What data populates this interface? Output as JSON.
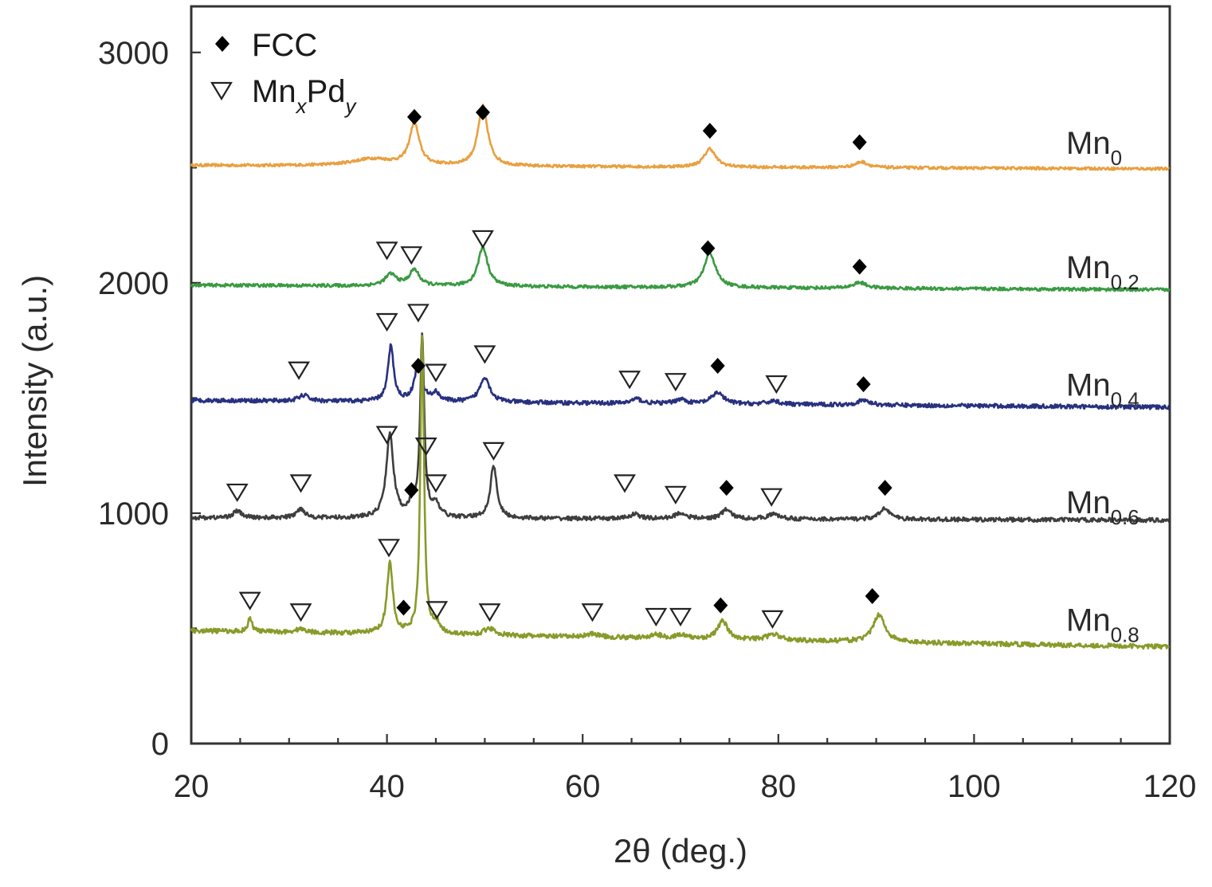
{
  "chart_data": {
    "type": "line",
    "title": "",
    "xlabel": "2θ (deg.)",
    "ylabel": "Intensity (a.u.)",
    "xlim": [
      20,
      120
    ],
    "ylim": [
      0,
      3200
    ],
    "x_ticks": [
      20,
      40,
      60,
      80,
      100,
      120
    ],
    "y_ticks": [
      0,
      1000,
      2000,
      3000
    ],
    "grid": false,
    "legend": {
      "placement": "top-left",
      "entries": [
        {
          "marker": "filled-diamond",
          "label": "FCC"
        },
        {
          "marker": "open-triangle-down",
          "label_main": "Mn",
          "sub1": "x",
          "mid": "Pd",
          "sub2": "y"
        }
      ]
    },
    "series": [
      {
        "label_main": "Mn",
        "label_sub": "0",
        "color": "#e8a040",
        "baseline": 2510,
        "baseline_end": 2495,
        "noise": 6,
        "label_y": 2560,
        "peaks": [
          [
            38.5,
            30,
            2.5
          ],
          [
            42.8,
            180,
            0.6
          ],
          [
            49.8,
            260,
            0.6
          ],
          [
            73.0,
            80,
            0.7
          ],
          [
            88.5,
            25,
            0.8
          ]
        ],
        "fcc": [
          [
            42.8,
            2720
          ],
          [
            49.8,
            2740
          ],
          [
            73.0,
            2660
          ],
          [
            88.3,
            2610
          ]
        ],
        "mnpd": []
      },
      {
        "label_main": "Mn",
        "label_sub": "0.2",
        "color": "#3a9a42",
        "baseline": 1990,
        "baseline_end": 1970,
        "noise": 7,
        "label_y": 2020,
        "peaks": [
          [
            40.4,
            50,
            0.7
          ],
          [
            42.8,
            70,
            0.6
          ],
          [
            49.8,
            170,
            0.6
          ],
          [
            73.0,
            150,
            0.7
          ],
          [
            88.3,
            25,
            0.8
          ]
        ],
        "fcc": [
          [
            72.8,
            2150
          ],
          [
            88.3,
            2070
          ]
        ],
        "mnpd": [
          [
            40.0,
            2140
          ],
          [
            42.5,
            2120
          ],
          [
            49.8,
            2190
          ]
        ]
      },
      {
        "label_main": "Mn",
        "label_sub": "0.4",
        "color": "#28317f",
        "baseline": 1490,
        "baseline_end": 1460,
        "noise": 9,
        "label_y": 1510,
        "peaks": [
          [
            31.5,
            25,
            0.6
          ],
          [
            40.4,
            240,
            0.35
          ],
          [
            43.2,
            160,
            0.45
          ],
          [
            45.0,
            35,
            0.5
          ],
          [
            50.0,
            110,
            0.6
          ],
          [
            65.5,
            20,
            0.6
          ],
          [
            70.0,
            20,
            0.6
          ],
          [
            73.8,
            50,
            0.7
          ],
          [
            79.5,
            15,
            0.7
          ],
          [
            88.7,
            20,
            0.8
          ]
        ],
        "fcc": [
          [
            43.2,
            1640
          ],
          [
            73.8,
            1640
          ],
          [
            88.7,
            1560
          ]
        ],
        "mnpd": [
          [
            31.0,
            1620
          ],
          [
            40.0,
            1830
          ],
          [
            43.2,
            1870
          ],
          [
            45.0,
            1610
          ],
          [
            50.0,
            1690
          ],
          [
            64.8,
            1580
          ],
          [
            69.5,
            1570
          ],
          [
            79.8,
            1560
          ]
        ]
      },
      {
        "label_main": "Mn",
        "label_sub": "0.6",
        "color": "#3e3e3e",
        "baseline": 980,
        "baseline_end": 970,
        "noise": 9,
        "label_y": 1000,
        "peaks": [
          [
            24.7,
            30,
            0.5
          ],
          [
            31.2,
            40,
            0.5
          ],
          [
            40.3,
            360,
            0.45
          ],
          [
            42.5,
            40,
            0.5
          ],
          [
            43.6,
            780,
            0.25
          ],
          [
            45.0,
            50,
            0.5
          ],
          [
            50.9,
            230,
            0.4
          ],
          [
            65.3,
            20,
            0.6
          ],
          [
            70.0,
            25,
            0.7
          ],
          [
            74.7,
            40,
            0.6
          ],
          [
            79.5,
            20,
            0.8
          ],
          [
            90.9,
            50,
            0.6
          ]
        ],
        "fcc": [
          [
            42.5,
            1100
          ],
          [
            74.7,
            1110
          ],
          [
            90.9,
            1110
          ]
        ],
        "mnpd": [
          [
            24.7,
            1090
          ],
          [
            31.2,
            1130
          ],
          [
            40.0,
            1340
          ],
          [
            44.0,
            1290
          ],
          [
            45.0,
            1130
          ],
          [
            50.9,
            1270
          ],
          [
            64.3,
            1130
          ],
          [
            69.5,
            1080
          ],
          [
            79.3,
            1070
          ]
        ]
      },
      {
        "label_main": "Mn",
        "label_sub": "0.8",
        "color": "#8a9a2a",
        "baseline": 490,
        "baseline_end": 420,
        "noise": 10,
        "label_y": 490,
        "peaks": [
          [
            26.0,
            60,
            0.25
          ],
          [
            31.2,
            15,
            0.6
          ],
          [
            40.3,
            310,
            0.35
          ],
          [
            43.6,
            1300,
            0.22
          ],
          [
            45.0,
            40,
            0.5
          ],
          [
            50.5,
            30,
            0.7
          ],
          [
            61.0,
            15,
            0.8
          ],
          [
            67.5,
            15,
            0.7
          ],
          [
            70.0,
            15,
            0.7
          ],
          [
            74.3,
            80,
            0.6
          ],
          [
            79.5,
            25,
            0.8
          ],
          [
            90.3,
            120,
            0.7
          ]
        ],
        "fcc": [
          [
            41.7,
            590
          ],
          [
            74.1,
            600
          ],
          [
            89.6,
            640
          ]
        ],
        "mnpd": [
          [
            26.0,
            620
          ],
          [
            31.2,
            570
          ],
          [
            40.2,
            850
          ],
          [
            45.1,
            580
          ],
          [
            50.5,
            570
          ],
          [
            61.0,
            570
          ],
          [
            67.5,
            550
          ],
          [
            70.0,
            550
          ],
          [
            79.4,
            540
          ]
        ]
      }
    ]
  }
}
